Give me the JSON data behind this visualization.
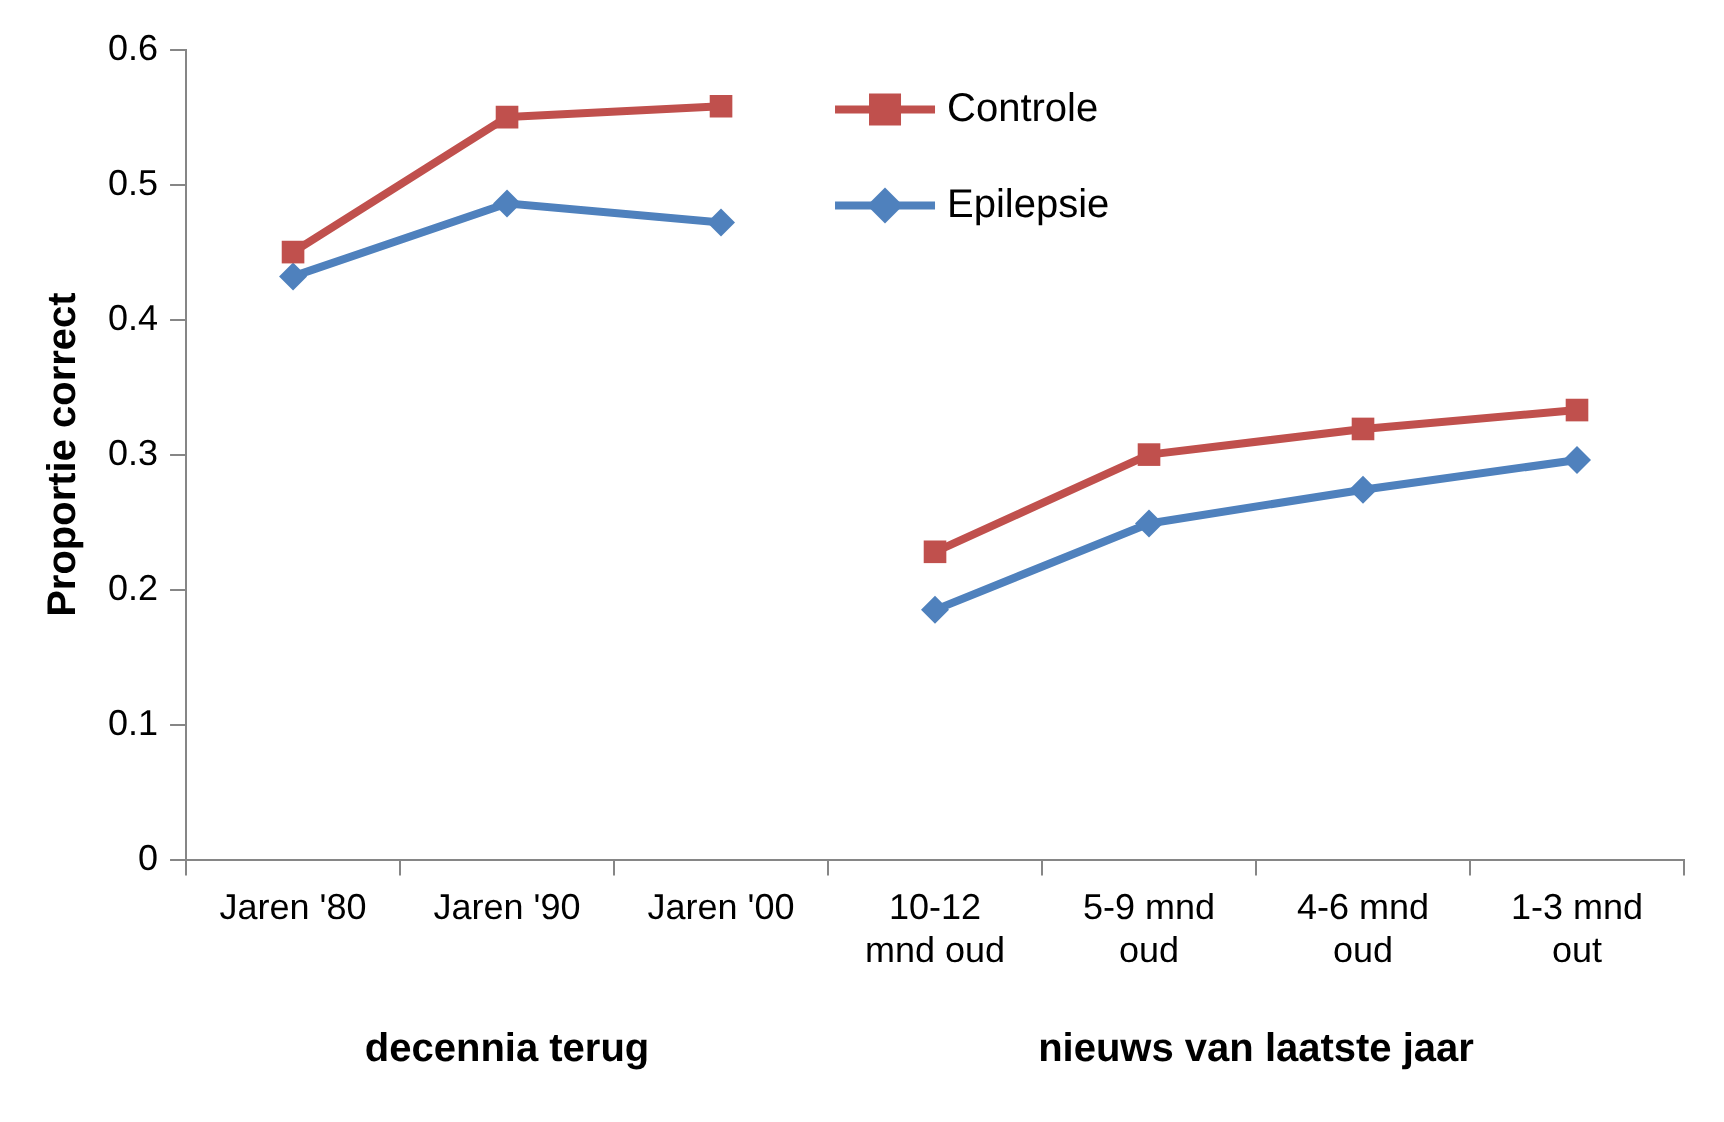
{
  "chart_data": {
    "type": "line",
    "ylabel": "Proportie correct",
    "categories": [
      "Jaren '80",
      "Jaren '90",
      "Jaren '00",
      "10-12 mnd oud",
      "5-9 mnd oud",
      "4-6 mnd oud",
      "1-3 mnd out"
    ],
    "series": [
      {
        "name": "Controle",
        "color": "#c0504d",
        "marker": "square",
        "values": [
          0.45,
          0.55,
          0.558,
          null,
          null,
          null,
          null
        ]
      },
      {
        "name": "Epilepsie",
        "color": "#4f81bd",
        "marker": "diamond",
        "values": [
          0.432,
          0.486,
          0.472,
          null,
          null,
          null,
          null
        ]
      },
      {
        "color": "#c0504d",
        "marker": "square",
        "values": [
          null,
          null,
          null,
          0.228,
          0.3,
          0.319,
          0.333
        ]
      },
      {
        "color": "#4f81bd",
        "marker": "diamond",
        "values": [
          null,
          null,
          null,
          0.185,
          0.249,
          0.274,
          0.296
        ]
      }
    ],
    "ylim": [
      0,
      0.6
    ],
    "yticks": [
      0,
      0.1,
      0.2,
      0.3,
      0.4,
      0.5,
      0.6
    ],
    "grid": false,
    "legend": "top",
    "line_style": "solid",
    "annotations": [
      "decennia terug",
      "nieuws van laatste jaar"
    ]
  }
}
